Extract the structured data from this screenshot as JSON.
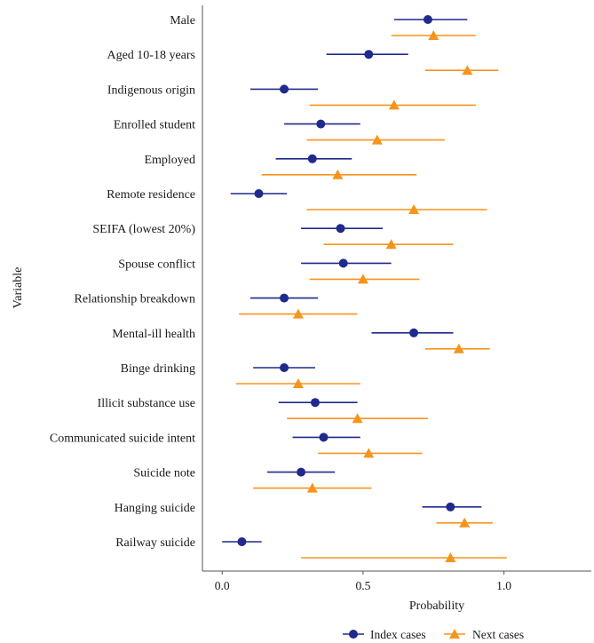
{
  "chart_data": {
    "type": "forest",
    "xlabel": "Probability",
    "ylabel": "Variable",
    "xlim": [
      -0.07,
      1.31
    ],
    "xticks": [
      0.0,
      0.5,
      1.0
    ],
    "xtick_labels": [
      "0.0",
      "0.5",
      "1.0"
    ],
    "grid": false,
    "legend_position": "bottom",
    "categories": [
      "Male",
      "Aged 10-18 years",
      "Indigenous origin",
      "Enrolled student",
      "Employed",
      "Remote residence",
      "SEIFA (lowest 20%)",
      "Spouse conflict",
      "Relationship breakdown",
      "Mental-ill health",
      "Binge drinking",
      "Illicit substance use",
      "Communicated suicide intent",
      "Suicide note",
      "Hanging suicide",
      "Railway suicide"
    ],
    "series": [
      {
        "name": "Index cases",
        "color": "#1f2a8c",
        "marker": "circle",
        "estimate": [
          0.73,
          0.52,
          0.22,
          0.35,
          0.32,
          0.13,
          0.42,
          0.43,
          0.22,
          0.68,
          0.22,
          0.33,
          0.36,
          0.28,
          0.81,
          0.07
        ],
        "lower": [
          0.61,
          0.37,
          0.1,
          0.22,
          0.19,
          0.03,
          0.28,
          0.28,
          0.1,
          0.53,
          0.11,
          0.2,
          0.25,
          0.16,
          0.71,
          0.0
        ],
        "upper": [
          0.87,
          0.66,
          0.34,
          0.49,
          0.46,
          0.23,
          0.57,
          0.6,
          0.34,
          0.82,
          0.33,
          0.48,
          0.49,
          0.4,
          0.92,
          0.14
        ]
      },
      {
        "name": "Next cases",
        "color": "#f7941d",
        "marker": "triangle",
        "estimate": [
          0.75,
          0.87,
          0.61,
          0.55,
          0.41,
          0.68,
          0.6,
          0.5,
          0.27,
          0.84,
          0.27,
          0.48,
          0.52,
          0.32,
          0.86,
          0.81
        ],
        "lower": [
          0.6,
          0.72,
          0.31,
          0.3,
          0.14,
          0.3,
          0.36,
          0.31,
          0.06,
          0.72,
          0.05,
          0.23,
          0.34,
          0.11,
          0.76,
          0.28
        ],
        "upper": [
          0.9,
          0.98,
          0.9,
          0.79,
          0.69,
          0.94,
          0.82,
          0.7,
          0.48,
          0.95,
          0.49,
          0.73,
          0.71,
          0.53,
          0.96,
          1.01
        ]
      }
    ]
  }
}
